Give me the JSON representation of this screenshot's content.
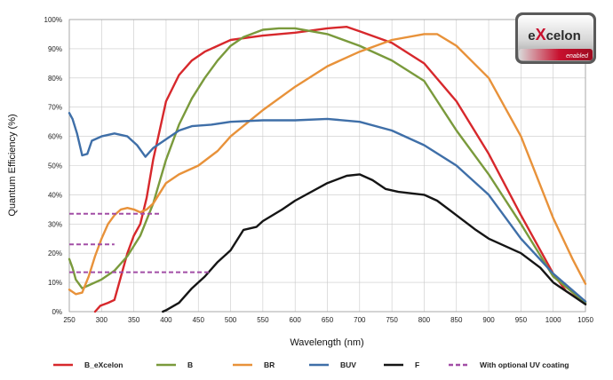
{
  "logo": {
    "brand_prefix": "e",
    "brand_x": "X",
    "brand_suffix": "celon",
    "badge": "enabled"
  },
  "chart_data": {
    "type": "line",
    "xlabel": "Wavelength (nm)",
    "ylabel": "Quantum Efficiency (%)",
    "xlim": [
      250,
      1050
    ],
    "ylim": [
      0,
      100
    ],
    "x_ticks": [
      250,
      300,
      350,
      400,
      450,
      500,
      550,
      600,
      650,
      700,
      750,
      800,
      850,
      900,
      950,
      1000,
      1050
    ],
    "y_ticks": [
      0,
      10,
      20,
      30,
      40,
      50,
      60,
      70,
      80,
      90,
      100
    ],
    "y_tick_labels": [
      "0%",
      "10%",
      "20%",
      "30%",
      "40%",
      "50%",
      "60%",
      "70%",
      "80%",
      "90%",
      "100%"
    ],
    "grid": true,
    "legend_position": "bottom",
    "series": [
      {
        "name": "B_eXcelon",
        "color": "#d7282c",
        "dash": false,
        "points": [
          [
            290,
            0
          ],
          [
            298,
            2
          ],
          [
            310,
            3
          ],
          [
            320,
            4
          ],
          [
            330,
            12
          ],
          [
            340,
            20
          ],
          [
            350,
            26
          ],
          [
            360,
            30
          ],
          [
            370,
            39
          ],
          [
            380,
            52
          ],
          [
            390,
            62
          ],
          [
            400,
            72
          ],
          [
            420,
            81
          ],
          [
            440,
            86
          ],
          [
            460,
            89
          ],
          [
            480,
            91
          ],
          [
            500,
            93
          ],
          [
            550,
            94.5
          ],
          [
            600,
            95.5
          ],
          [
            650,
            97
          ],
          [
            680,
            97.5
          ],
          [
            700,
            96
          ],
          [
            750,
            92
          ],
          [
            800,
            85
          ],
          [
            850,
            72
          ],
          [
            900,
            54
          ],
          [
            950,
            33
          ],
          [
            980,
            21
          ],
          [
            1000,
            13
          ],
          [
            1020,
            7
          ],
          [
            1050,
            3
          ]
        ]
      },
      {
        "name": "B",
        "color": "#7a9a3c",
        "dash": false,
        "points": [
          [
            250,
            18
          ],
          [
            255,
            15
          ],
          [
            260,
            11
          ],
          [
            270,
            8
          ],
          [
            280,
            9
          ],
          [
            300,
            11
          ],
          [
            320,
            14
          ],
          [
            340,
            19
          ],
          [
            360,
            26
          ],
          [
            380,
            37
          ],
          [
            400,
            52
          ],
          [
            420,
            64
          ],
          [
            440,
            73
          ],
          [
            460,
            80
          ],
          [
            480,
            86
          ],
          [
            500,
            91
          ],
          [
            520,
            94
          ],
          [
            550,
            96.5
          ],
          [
            575,
            97
          ],
          [
            600,
            97
          ],
          [
            650,
            95
          ],
          [
            700,
            91
          ],
          [
            750,
            86
          ],
          [
            800,
            79
          ],
          [
            850,
            62
          ],
          [
            900,
            47
          ],
          [
            950,
            30
          ],
          [
            1000,
            12
          ],
          [
            1050,
            3
          ]
        ]
      },
      {
        "name": "BR",
        "color": "#e8923a",
        "dash": false,
        "points": [
          [
            250,
            7.5
          ],
          [
            260,
            6
          ],
          [
            270,
            6.5
          ],
          [
            280,
            12
          ],
          [
            290,
            19
          ],
          [
            300,
            25
          ],
          [
            310,
            30
          ],
          [
            320,
            33
          ],
          [
            330,
            35
          ],
          [
            340,
            35.5
          ],
          [
            350,
            35
          ],
          [
            360,
            34
          ],
          [
            370,
            35
          ],
          [
            380,
            37
          ],
          [
            400,
            44
          ],
          [
            420,
            47
          ],
          [
            450,
            50
          ],
          [
            480,
            55
          ],
          [
            500,
            60
          ],
          [
            550,
            69
          ],
          [
            600,
            77
          ],
          [
            650,
            84
          ],
          [
            700,
            89
          ],
          [
            750,
            93
          ],
          [
            800,
            95
          ],
          [
            820,
            95
          ],
          [
            850,
            91
          ],
          [
            900,
            80
          ],
          [
            950,
            60
          ],
          [
            1000,
            32
          ],
          [
            1030,
            18
          ],
          [
            1050,
            9.5
          ]
        ]
      },
      {
        "name": "BUV",
        "color": "#3f6fa8",
        "dash": false,
        "points": [
          [
            250,
            68
          ],
          [
            255,
            66
          ],
          [
            262,
            61
          ],
          [
            270,
            53.5
          ],
          [
            278,
            54
          ],
          [
            285,
            58.5
          ],
          [
            300,
            60
          ],
          [
            320,
            61
          ],
          [
            340,
            60
          ],
          [
            355,
            57
          ],
          [
            368,
            53
          ],
          [
            380,
            56
          ],
          [
            400,
            59
          ],
          [
            420,
            62
          ],
          [
            440,
            63.5
          ],
          [
            470,
            64
          ],
          [
            500,
            65
          ],
          [
            550,
            65.5
          ],
          [
            600,
            65.5
          ],
          [
            650,
            66
          ],
          [
            700,
            65
          ],
          [
            750,
            62
          ],
          [
            800,
            57
          ],
          [
            850,
            50
          ],
          [
            900,
            40
          ],
          [
            950,
            25
          ],
          [
            1000,
            13
          ],
          [
            1050,
            3.5
          ]
        ]
      },
      {
        "name": "F",
        "color": "#151515",
        "dash": false,
        "points": [
          [
            395,
            0
          ],
          [
            400,
            0.5
          ],
          [
            420,
            3
          ],
          [
            440,
            8
          ],
          [
            460,
            12
          ],
          [
            480,
            17
          ],
          [
            500,
            21
          ],
          [
            520,
            28
          ],
          [
            540,
            29
          ],
          [
            550,
            31
          ],
          [
            580,
            35
          ],
          [
            600,
            38
          ],
          [
            650,
            44
          ],
          [
            680,
            46.5
          ],
          [
            700,
            47
          ],
          [
            720,
            45
          ],
          [
            740,
            42
          ],
          [
            760,
            41
          ],
          [
            800,
            40
          ],
          [
            820,
            38
          ],
          [
            850,
            33
          ],
          [
            880,
            28
          ],
          [
            900,
            25
          ],
          [
            950,
            20
          ],
          [
            980,
            15
          ],
          [
            1000,
            10
          ],
          [
            1050,
            2.5
          ]
        ]
      },
      {
        "name": "With optional UV coating",
        "color": "#a24ea6",
        "dash": true,
        "segments": [
          [
            [
              250,
              33.5
            ],
            [
              390,
              33.5
            ]
          ],
          [
            [
              250,
              23
            ],
            [
              320,
              23
            ]
          ],
          [
            [
              250,
              13.5
            ],
            [
              470,
              13.5
            ]
          ]
        ]
      }
    ],
    "annotations": []
  }
}
